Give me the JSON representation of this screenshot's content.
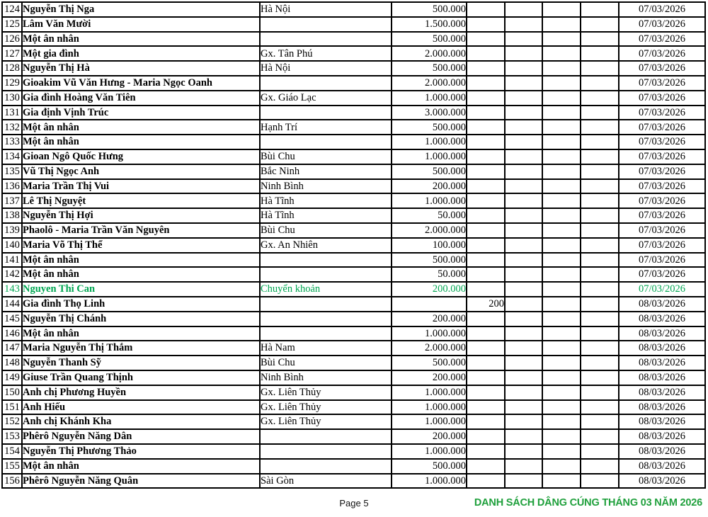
{
  "footer": {
    "page_label": "Page 5",
    "title": "DANH SÁCH DÂNG CÚNG THÁNG 03 NĂM 2026"
  },
  "colors": {
    "highlight_row_green": "#00A651",
    "footer_title_green": "#1FA03C",
    "table_border": "#000000",
    "background": "#FFFFFF"
  },
  "table": {
    "columns": [
      "no",
      "name",
      "location",
      "amount",
      "extra1",
      "extra2",
      "extra3",
      "extra4",
      "date"
    ],
    "rows": [
      {
        "no": "124",
        "name": "Nguyễn Thị Nga",
        "location": "Hà Nội",
        "amount": "500.000",
        "extra": "",
        "date": "07/03/2026",
        "highlight": false
      },
      {
        "no": "125",
        "name": "Lâm Văn Mười",
        "location": "",
        "amount": "1.500.000",
        "extra": "",
        "date": "07/03/2026",
        "highlight": false
      },
      {
        "no": "126",
        "name": "Một ân nhân",
        "location": "",
        "amount": "500.000",
        "extra": "",
        "date": "07/03/2026",
        "highlight": false
      },
      {
        "no": "127",
        "name": "Một gia đình",
        "location": "Gx. Tân Phú",
        "amount": "2.000.000",
        "extra": "",
        "date": "07/03/2026",
        "highlight": false
      },
      {
        "no": "128",
        "name": "Nguyễn Thị Hà",
        "location": "Hà Nội",
        "amount": "500.000",
        "extra": "",
        "date": "07/03/2026",
        "highlight": false
      },
      {
        "no": "129",
        "name": "Gioakim Vũ Văn Hưng - Maria Ngọc Oanh",
        "location": "",
        "amount": "2.000.000",
        "extra": "",
        "date": "07/03/2026",
        "highlight": false
      },
      {
        "no": "130",
        "name": "Gia đình Hoàng Văn Tiên",
        "location": "Gx. Giáo Lạc",
        "amount": "1.000.000",
        "extra": "",
        "date": "07/03/2026",
        "highlight": false
      },
      {
        "no": "131",
        "name": "Gia định Vịnh Trúc",
        "location": "",
        "amount": "3.000.000",
        "extra": "",
        "date": "07/03/2026",
        "highlight": false
      },
      {
        "no": "132",
        "name": "Một ân nhân",
        "location": "Hạnh Trí",
        "amount": "500.000",
        "extra": "",
        "date": "07/03/2026",
        "highlight": false
      },
      {
        "no": "133",
        "name": "Một ân nhân",
        "location": "",
        "amount": "1.000.000",
        "extra": "",
        "date": "07/03/2026",
        "highlight": false
      },
      {
        "no": "134",
        "name": "Gioan Ngô Quốc Hưng",
        "location": "Bùi Chu",
        "amount": "1.000.000",
        "extra": "",
        "date": "07/03/2026",
        "highlight": false
      },
      {
        "no": "135",
        "name": "Vũ Thị Ngọc Anh",
        "location": "Bắc Ninh",
        "amount": "500.000",
        "extra": "",
        "date": "07/03/2026",
        "highlight": false
      },
      {
        "no": "136",
        "name": "Maria Trần Thị Vui",
        "location": "Ninh Bình",
        "amount": "200.000",
        "extra": "",
        "date": "07/03/2026",
        "highlight": false
      },
      {
        "no": "137",
        "name": "Lê Thị Nguyệt",
        "location": "Hà Tĩnh",
        "amount": "1.000.000",
        "extra": "",
        "date": "07/03/2026",
        "highlight": false
      },
      {
        "no": "138",
        "name": "Nguyễn Thị Hợi",
        "location": "Hà Tĩnh",
        "amount": "50.000",
        "extra": "",
        "date": "07/03/2026",
        "highlight": false
      },
      {
        "no": "139",
        "name": "Phaolô - Maria Trần Văn Nguyên",
        "location": "Bùi Chu",
        "amount": "2.000.000",
        "extra": "",
        "date": "07/03/2026",
        "highlight": false
      },
      {
        "no": "140",
        "name": "Maria Võ Thị Thể",
        "location": "Gx. An Nhiên",
        "amount": "100.000",
        "extra": "",
        "date": "07/03/2026",
        "highlight": false
      },
      {
        "no": "141",
        "name": "Một ân nhân",
        "location": "",
        "amount": "500.000",
        "extra": "",
        "date": "07/03/2026",
        "highlight": false
      },
      {
        "no": "142",
        "name": "Một ân nhân",
        "location": "",
        "amount": "50.000",
        "extra": "",
        "date": "07/03/2026",
        "highlight": false
      },
      {
        "no": "143",
        "name": "Nguyen Thi Can",
        "location": "Chuyển khoản",
        "amount": "200.000",
        "extra": "",
        "date": "07/03/2026",
        "highlight": true
      },
      {
        "no": "144",
        "name": "Gia đình Thọ Linh",
        "location": "",
        "amount": "",
        "extra": "200",
        "date": "08/03/2026",
        "highlight": false
      },
      {
        "no": "145",
        "name": "Nguyễn Thị Chánh",
        "location": "",
        "amount": "200.000",
        "extra": "",
        "date": "08/03/2026",
        "highlight": false
      },
      {
        "no": "146",
        "name": "Một ân nhân",
        "location": "",
        "amount": "1.000.000",
        "extra": "",
        "date": "08/03/2026",
        "highlight": false
      },
      {
        "no": "147",
        "name": "Maria Nguyễn Thị Thắm",
        "location": "Hà Nam",
        "amount": "2.000.000",
        "extra": "",
        "date": "08/03/2026",
        "highlight": false
      },
      {
        "no": "148",
        "name": "Nguyễn Thanh Sỹ",
        "location": "Bùi Chu",
        "amount": "500.000",
        "extra": "",
        "date": "08/03/2026",
        "highlight": false
      },
      {
        "no": "149",
        "name": "Giuse Trần Quang Thịnh",
        "location": "Ninh Bình",
        "amount": "200.000",
        "extra": "",
        "date": "08/03/2026",
        "highlight": false
      },
      {
        "no": "150",
        "name": "Anh chị Phương Huyền",
        "location": "Gx. Liên Thủy",
        "amount": "1.000.000",
        "extra": "",
        "date": "08/03/2026",
        "highlight": false
      },
      {
        "no": "151",
        "name": "Anh Hiếu",
        "location": "Gx. Liên Thủy",
        "amount": "1.000.000",
        "extra": "",
        "date": "08/03/2026",
        "highlight": false
      },
      {
        "no": "152",
        "name": "Anh chị Khánh Kha",
        "location": "Gx. Liên Thủy",
        "amount": "1.000.000",
        "extra": "",
        "date": "08/03/2026",
        "highlight": false
      },
      {
        "no": "153",
        "name": "Phêrô Nguyễn Năng Dân",
        "location": "",
        "amount": "200.000",
        "extra": "",
        "date": "08/03/2026",
        "highlight": false
      },
      {
        "no": "154",
        "name": "Nguyễn Thị Phương Thảo",
        "location": "",
        "amount": "1.000.000",
        "extra": "",
        "date": "08/03/2026",
        "highlight": false
      },
      {
        "no": "155",
        "name": "Một ân nhân",
        "location": "",
        "amount": "500.000",
        "extra": "",
        "date": "08/03/2026",
        "highlight": false
      },
      {
        "no": "156",
        "name": "Phêrô Nguyễn Năng Quân",
        "location": "Sài Gòn",
        "amount": "1.000.000",
        "extra": "",
        "date": "08/03/2026",
        "highlight": false
      }
    ]
  }
}
